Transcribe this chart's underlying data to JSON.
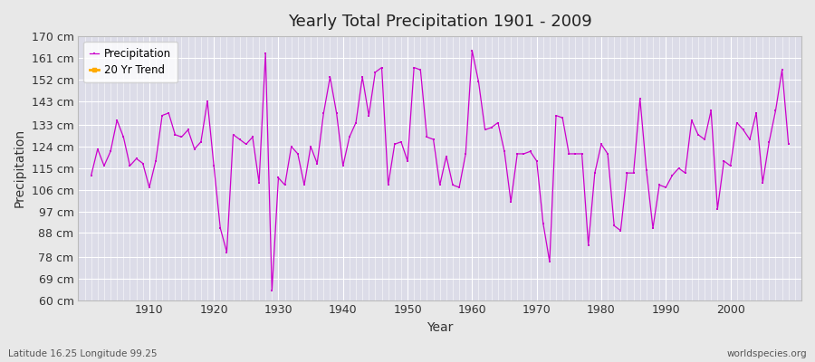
{
  "title": "Yearly Total Precipitation 1901 - 2009",
  "xlabel": "Year",
  "ylabel": "Precipitation",
  "lat_lon_label": "Latitude 16.25 Longitude 99.25",
  "watermark": "worldspecies.org",
  "line_color": "#cc00cc",
  "trend_color": "#ffaa00",
  "background_color": "#e8e8e8",
  "plot_bg_color": "#dcdce8",
  "grid_color": "#ffffff",
  "ylim": [
    60,
    170
  ],
  "yticks": [
    60,
    69,
    78,
    88,
    97,
    106,
    115,
    124,
    133,
    143,
    152,
    161,
    170
  ],
  "ytick_labels": [
    "60 cm",
    "69 cm",
    "78 cm",
    "88 cm",
    "97 cm",
    "106 cm",
    "115 cm",
    "124 cm",
    "133 cm",
    "143 cm",
    "152 cm",
    "161 cm",
    "170 cm"
  ],
  "years": [
    1901,
    1902,
    1903,
    1904,
    1905,
    1906,
    1907,
    1908,
    1909,
    1910,
    1911,
    1912,
    1913,
    1914,
    1915,
    1916,
    1917,
    1918,
    1919,
    1920,
    1921,
    1922,
    1923,
    1924,
    1925,
    1926,
    1927,
    1928,
    1929,
    1930,
    1931,
    1932,
    1933,
    1934,
    1935,
    1936,
    1937,
    1938,
    1939,
    1940,
    1941,
    1942,
    1943,
    1944,
    1945,
    1946,
    1947,
    1948,
    1949,
    1950,
    1951,
    1952,
    1953,
    1954,
    1955,
    1956,
    1957,
    1958,
    1959,
    1960,
    1961,
    1962,
    1963,
    1964,
    1965,
    1966,
    1967,
    1968,
    1969,
    1970,
    1971,
    1972,
    1973,
    1974,
    1975,
    1976,
    1977,
    1978,
    1979,
    1980,
    1981,
    1982,
    1983,
    1984,
    1985,
    1986,
    1987,
    1988,
    1989,
    1990,
    1991,
    1992,
    1993,
    1994,
    1995,
    1996,
    1997,
    1998,
    1999,
    2000,
    2001,
    2002,
    2003,
    2004,
    2005,
    2006,
    2007,
    2008,
    2009
  ],
  "precip": [
    112,
    123,
    116,
    122,
    135,
    128,
    116,
    119,
    117,
    107,
    118,
    137,
    138,
    129,
    128,
    131,
    123,
    126,
    143,
    116,
    90,
    80,
    129,
    127,
    125,
    128,
    109,
    163,
    64,
    111,
    108,
    124,
    121,
    108,
    124,
    117,
    138,
    153,
    138,
    116,
    128,
    134,
    153,
    137,
    155,
    157,
    108,
    125,
    126,
    118,
    157,
    156,
    128,
    127,
    108,
    120,
    108,
    107,
    121,
    164,
    151,
    131,
    132,
    134,
    122,
    101,
    121,
    121,
    122,
    118,
    92,
    76,
    137,
    136,
    121,
    121,
    121,
    83,
    113,
    125,
    121,
    91,
    89,
    113,
    113,
    144,
    114,
    90,
    108,
    107,
    112,
    115,
    113,
    135,
    129,
    127,
    139,
    98,
    118,
    116,
    134,
    131,
    127,
    138,
    109,
    126,
    139,
    156,
    125
  ],
  "xlim": [
    1899,
    2011
  ],
  "xticks": [
    1910,
    1920,
    1930,
    1940,
    1950,
    1960,
    1970,
    1980,
    1990,
    2000
  ]
}
